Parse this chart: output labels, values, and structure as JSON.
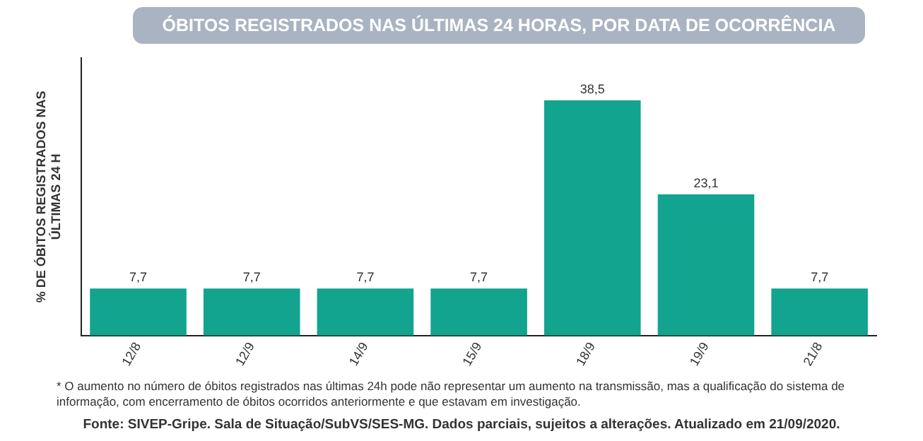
{
  "chart_data": {
    "type": "bar",
    "title": "ÓBITOS REGISTRADOS NAS ÚLTIMAS 24 HORAS, POR DATA DE OCORRÊNCIA",
    "ylabel": "% DE ÓBITOS REGISTRADOS NAS ÚLTIMAS 24 H",
    "categories": [
      "12/8",
      "12/9",
      "14/9",
      "15/9",
      "18/9",
      "19/9",
      "21/8"
    ],
    "values": [
      7.7,
      7.7,
      7.7,
      7.7,
      38.5,
      23.1,
      7.7
    ],
    "value_labels": [
      "7,7",
      "7,7",
      "7,7",
      "7,7",
      "38,5",
      "23,1",
      "7,7"
    ],
    "color": "#12a48e",
    "grid": false,
    "legend": false,
    "annotations": [
      "* O aumento no número de óbitos registrados nas últimas 24h pode não representar um aumento na transmissão, mas a qualificação do sistema de informação, com encerramento de óbitos ocorridos anteriormente e que estavam em investigação.",
      "Fonte: SIVEP-Gripe. Sala de Situação/SubVS/SES-MG. Dados parciais, sujeitos a alterações. Atualizado em 21/09/2020."
    ]
  }
}
